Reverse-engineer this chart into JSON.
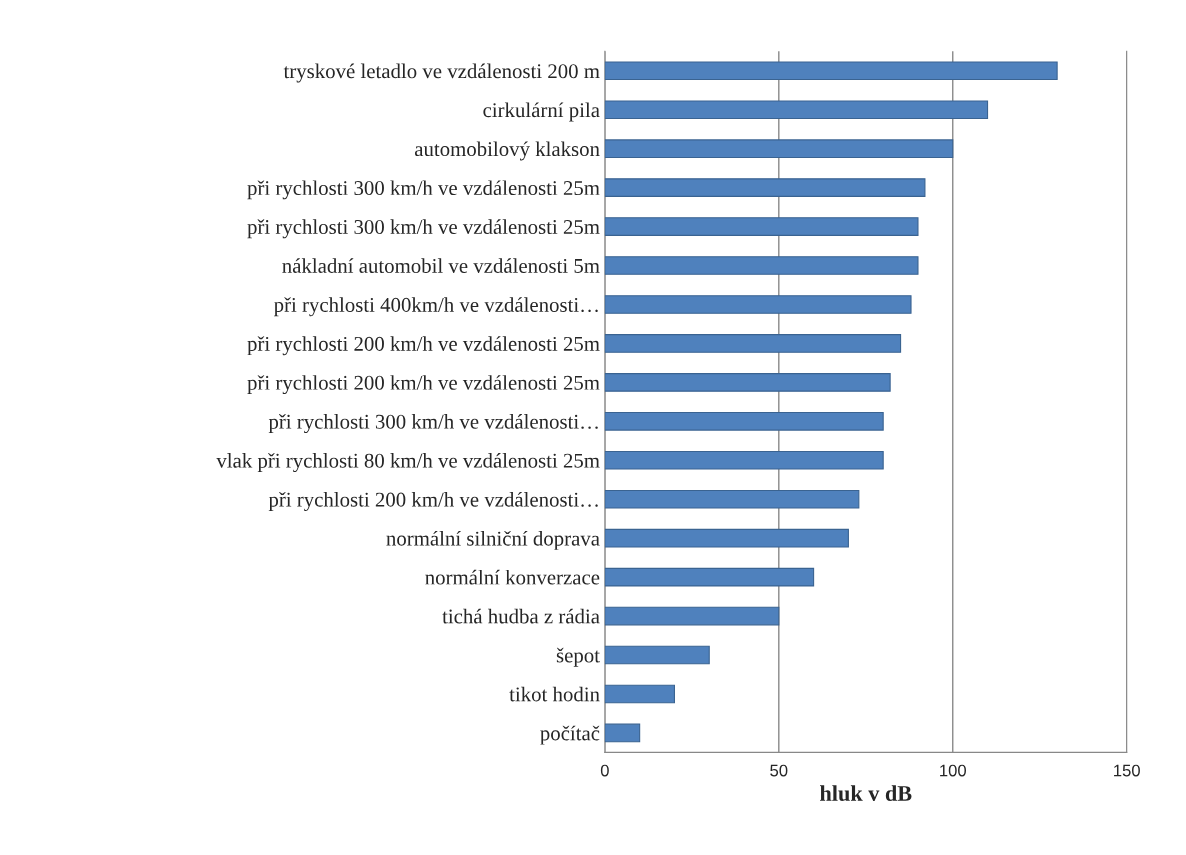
{
  "chart_data": {
    "type": "bar",
    "orientation": "horizontal",
    "xlabel": "hluk v dB",
    "categories": [
      "tryskové letadlo ve vzdálenosti 200 m",
      "cirkulární pila",
      "automobilový klakson",
      "při rychlosti 300 km/h ve vzdálenosti 25m",
      "při rychlosti 300 km/h ve vzdálenosti 25m",
      "nákladní automobil ve vzdálenosti 5m",
      "při rychlosti 400km/h ve vzdálenosti…",
      "při rychlosti 200 km/h ve vzdálenosti 25m",
      "při rychlosti 200 km/h ve vzdálenosti 25m",
      "při rychlosti 300 km/h ve vzdálenosti…",
      "vlak při rychlosti 80 km/h ve vzdálenosti 25m",
      "při rychlosti 200 km/h ve vzdálenosti…",
      "normální silniční doprava",
      "normální konverzace",
      "tichá hudba z rádia",
      "šepot",
      "tikot hodin",
      "počítač"
    ],
    "values": [
      130,
      110,
      100,
      92,
      90,
      90,
      88,
      85,
      82,
      80,
      80,
      73,
      70,
      60,
      50,
      30,
      20,
      10
    ],
    "color": "#4f81bd",
    "xlim": [
      0,
      150
    ],
    "xticks": [
      0,
      50,
      100,
      150
    ],
    "grid": "x"
  }
}
